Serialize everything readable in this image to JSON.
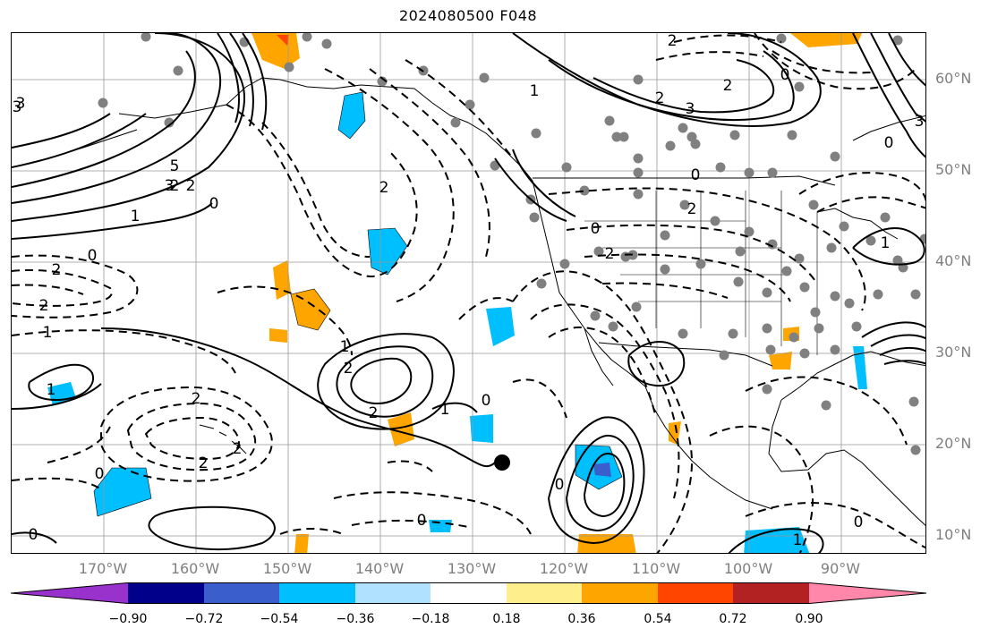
{
  "title": "2024080500 F048",
  "lat_labels": [
    "60°N",
    "50°N",
    "40°N",
    "30°N",
    "20°N",
    "10°N"
  ],
  "lon_labels": [
    "170°W",
    "160°W",
    "150°W",
    "140°W",
    "130°W",
    "120°W",
    "110°W",
    "100°W",
    "90°W"
  ],
  "contour_labels": [
    "2",
    "3",
    "5",
    "3",
    "2",
    "1",
    "0",
    "2",
    "2",
    "1",
    "0",
    "1",
    "2",
    "2",
    "2",
    "0",
    "0",
    "1",
    "2",
    "2",
    "0",
    "3",
    "2",
    "1",
    "0",
    "1",
    "2",
    "0",
    "2",
    "3",
    "2",
    "0",
    "2",
    "2",
    "1",
    "0",
    "3",
    "0",
    "1",
    "0",
    "0"
  ],
  "colorbar": {
    "ticks": [
      "−0.90",
      "−0.72",
      "−0.54",
      "−0.36",
      "−0.18",
      "0.18",
      "0.36",
      "0.54",
      "0.72",
      "0.90"
    ],
    "colors": [
      "#9932cc",
      "#00008b",
      "#3a5fcd",
      "#00bfff",
      "#b0e2ff",
      "#ffffff",
      "#ffee8c",
      "#ffa500",
      "#ff4500",
      "#b22222",
      "#ff88aa"
    ]
  }
}
